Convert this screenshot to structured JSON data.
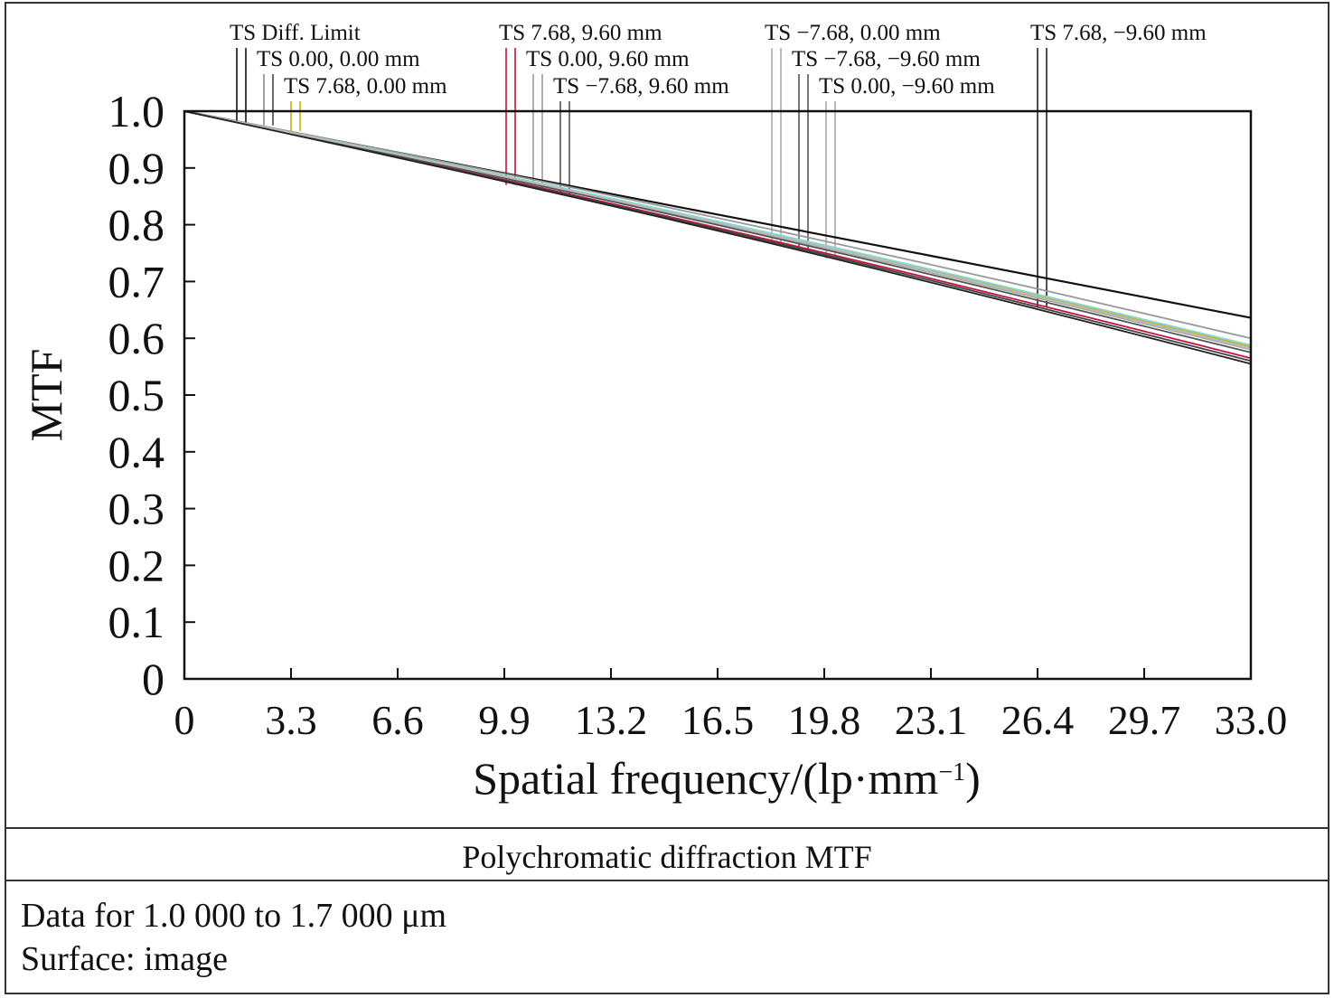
{
  "chart_data": {
    "type": "line",
    "title": "Polychromatic diffraction MTF",
    "xlabel": "Spatial frequency/(lp·mm",
    "xlabel_sup": "−1",
    "xlabel_close": ")",
    "ylabel": "MTF",
    "xlim": [
      0,
      33.0
    ],
    "ylim": [
      0,
      1.0
    ],
    "x_ticks": [
      0,
      3.3,
      6.6,
      9.9,
      13.2,
      16.5,
      19.8,
      23.1,
      26.4,
      29.7,
      33.0
    ],
    "x_tick_labels": [
      "0",
      "3.3",
      "6.6",
      "9.9",
      "13.2",
      "16.5",
      "19.8",
      "23.1",
      "26.4",
      "29.7",
      "33.0"
    ],
    "y_ticks": [
      0,
      0.1,
      0.2,
      0.3,
      0.4,
      0.5,
      0.6,
      0.7,
      0.8,
      0.9,
      1.0
    ],
    "y_tick_labels": [
      "0",
      "0.1",
      "0.2",
      "0.3",
      "0.4",
      "0.5",
      "0.6",
      "0.7",
      "0.8",
      "0.9",
      "1.0"
    ],
    "grid": false,
    "series": [
      {
        "name": "TS Diff. Limit",
        "color": "#111111",
        "x": [
          0,
          33.0
        ],
        "y": [
          1.0,
          0.636
        ]
      },
      {
        "name": "TS 0.00, 0.00 mm",
        "color": "#999999",
        "x": [
          0,
          33.0
        ],
        "y": [
          1.0,
          0.6
        ]
      },
      {
        "name": "TS 7.68, 0.00 mm",
        "color": "#c8b400",
        "x": [
          0,
          33.0
        ],
        "y": [
          1.0,
          0.585
        ]
      },
      {
        "name": "TS 7.68, 9.60 mm",
        "color": "#c0143c",
        "x": [
          0,
          33.0
        ],
        "y": [
          1.0,
          0.565
        ]
      },
      {
        "name": "TS 0.00, 9.60 mm",
        "color": "#aaaaaa",
        "x": [
          0,
          33.0
        ],
        "y": [
          1.0,
          0.58
        ]
      },
      {
        "name": "TS −7.68, 9.60 mm",
        "color": "#555555",
        "x": [
          0,
          33.0
        ],
        "y": [
          1.0,
          0.575
        ]
      },
      {
        "name": "TS −7.68, 0.00 mm",
        "color": "#80d8d8",
        "x": [
          0,
          33.0
        ],
        "y": [
          1.0,
          0.588
        ]
      },
      {
        "name": "TS −7.68, −9.60 mm",
        "color": "#444444",
        "x": [
          0,
          33.0
        ],
        "y": [
          1.0,
          0.56
        ]
      },
      {
        "name": "TS 0.00, −9.60 mm",
        "color": "#bbbbbb",
        "x": [
          0,
          33.0
        ],
        "y": [
          1.0,
          0.583
        ]
      },
      {
        "name": "TS 7.68, −9.60 mm",
        "color": "#222222",
        "x": [
          0,
          33.0
        ],
        "y": [
          1.0,
          0.555
        ]
      }
    ],
    "legend": [
      {
        "text": "TS Diff. Limit",
        "row": 0,
        "colors": [
          "#111111",
          "#111111"
        ]
      },
      {
        "text": "TS 0.00, 0.00 mm",
        "row": 1,
        "colors": [
          "#888888",
          "#444444"
        ]
      },
      {
        "text": "TS 7.68, 0.00 mm",
        "row": 2,
        "colors": [
          "#c8b400",
          "#c8b400"
        ]
      },
      {
        "text": "TS 7.68, 9.60 mm",
        "row": 0,
        "colors": [
          "#c0143c",
          "#c0143c"
        ]
      },
      {
        "text": "TS 0.00, 9.60 mm",
        "row": 1,
        "colors": [
          "#999999",
          "#999999"
        ]
      },
      {
        "text": "TS −7.68, 9.60 mm",
        "row": 2,
        "colors": [
          "#555555",
          "#555555"
        ]
      },
      {
        "text": "TS −7.68, 0.00 mm",
        "row": 0,
        "colors": [
          "#aaaaaa",
          "#aaaaaa"
        ]
      },
      {
        "text": "TS −7.68, −9.60 mm",
        "row": 1,
        "colors": [
          "#555555",
          "#555555"
        ]
      },
      {
        "text": "TS 0.00, −9.60 mm",
        "row": 2,
        "colors": [
          "#aaaaaa",
          "#aaaaaa"
        ]
      },
      {
        "text": "TS 7.68, −9.60 mm",
        "row": 0,
        "colors": [
          "#222222",
          "#222222"
        ]
      }
    ]
  },
  "caption": {
    "title": "Polychromatic diffraction MTF",
    "line1": "Data for 1.0 000 to 1.7 000 μm",
    "line2": "Surface: image"
  }
}
